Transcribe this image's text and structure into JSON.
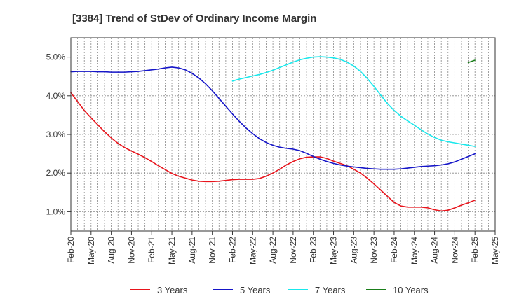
{
  "chart_data": {
    "type": "line",
    "title": "[3384]  Trend of StDev of Ordinary Income Margin",
    "xlabel": "",
    "ylabel": "",
    "x_ticks": [
      "Feb-20",
      "May-20",
      "Aug-20",
      "Nov-20",
      "Feb-21",
      "May-21",
      "Aug-21",
      "Nov-21",
      "Feb-22",
      "May-22",
      "Aug-22",
      "Nov-22",
      "Feb-23",
      "May-23",
      "Aug-23",
      "Nov-23",
      "Feb-24",
      "May-24",
      "Aug-24",
      "Nov-24",
      "Feb-25",
      "May-25"
    ],
    "y_ticks": [
      "1.0%",
      "2.0%",
      "3.0%",
      "4.0%",
      "5.0%"
    ],
    "ylim": [
      0.5,
      5.5
    ],
    "grid": true,
    "legend_position": "bottom",
    "series": [
      {
        "name": "3 Years",
        "color": "#e8141c",
        "points": [
          [
            "Feb-20",
            4.08
          ],
          [
            "Mar-20",
            3.85
          ],
          [
            "Apr-20",
            3.62
          ],
          [
            "May-20",
            3.43
          ],
          [
            "Jun-20",
            3.25
          ],
          [
            "Jul-20",
            3.07
          ],
          [
            "Aug-20",
            2.91
          ],
          [
            "Sep-20",
            2.77
          ],
          [
            "Oct-20",
            2.66
          ],
          [
            "Nov-20",
            2.57
          ],
          [
            "Dec-20",
            2.49
          ],
          [
            "Jan-21",
            2.4
          ],
          [
            "Feb-21",
            2.3
          ],
          [
            "Mar-21",
            2.19
          ],
          [
            "Apr-21",
            2.09
          ],
          [
            "May-21",
            1.99
          ],
          [
            "Jun-21",
            1.92
          ],
          [
            "Jul-21",
            1.87
          ],
          [
            "Aug-21",
            1.82
          ],
          [
            "Sep-21",
            1.79
          ],
          [
            "Oct-21",
            1.78
          ],
          [
            "Nov-21",
            1.78
          ],
          [
            "Dec-21",
            1.79
          ],
          [
            "Jan-22",
            1.81
          ],
          [
            "Feb-22",
            1.83
          ],
          [
            "Mar-22",
            1.84
          ],
          [
            "Apr-22",
            1.84
          ],
          [
            "May-22",
            1.84
          ],
          [
            "Jun-22",
            1.86
          ],
          [
            "Jul-22",
            1.92
          ],
          [
            "Aug-22",
            2.0
          ],
          [
            "Sep-22",
            2.1
          ],
          [
            "Oct-22",
            2.21
          ],
          [
            "Nov-22",
            2.3
          ],
          [
            "Dec-22",
            2.37
          ],
          [
            "Jan-23",
            2.41
          ],
          [
            "Feb-23",
            2.42
          ],
          [
            "Mar-23",
            2.42
          ],
          [
            "Apr-23",
            2.38
          ],
          [
            "May-23",
            2.31
          ],
          [
            "Jun-23",
            2.25
          ],
          [
            "Jul-23",
            2.19
          ],
          [
            "Aug-23",
            2.1
          ],
          [
            "Sep-23",
            2.0
          ],
          [
            "Oct-23",
            1.87
          ],
          [
            "Nov-23",
            1.72
          ],
          [
            "Dec-23",
            1.56
          ],
          [
            "Jan-24",
            1.4
          ],
          [
            "Feb-24",
            1.24
          ],
          [
            "Mar-24",
            1.15
          ],
          [
            "Apr-24",
            1.12
          ],
          [
            "May-24",
            1.12
          ],
          [
            "Jun-24",
            1.12
          ],
          [
            "Jul-24",
            1.1
          ],
          [
            "Aug-24",
            1.05
          ],
          [
            "Sep-24",
            1.02
          ],
          [
            "Oct-24",
            1.04
          ],
          [
            "Nov-24",
            1.1
          ],
          [
            "Dec-24",
            1.17
          ],
          [
            "Jan-25",
            1.23
          ],
          [
            "Feb-25",
            1.3
          ]
        ]
      },
      {
        "name": "5 Years",
        "color": "#1515c8",
        "points": [
          [
            "Feb-20",
            4.62
          ],
          [
            "Mar-20",
            4.63
          ],
          [
            "Apr-20",
            4.63
          ],
          [
            "May-20",
            4.63
          ],
          [
            "Jun-20",
            4.62
          ],
          [
            "Jul-20",
            4.62
          ],
          [
            "Aug-20",
            4.61
          ],
          [
            "Sep-20",
            4.61
          ],
          [
            "Oct-20",
            4.61
          ],
          [
            "Nov-20",
            4.62
          ],
          [
            "Dec-20",
            4.63
          ],
          [
            "Jan-21",
            4.65
          ],
          [
            "Feb-21",
            4.67
          ],
          [
            "Mar-21",
            4.69
          ],
          [
            "Apr-21",
            4.72
          ],
          [
            "May-21",
            4.74
          ],
          [
            "Jun-21",
            4.72
          ],
          [
            "Jul-21",
            4.67
          ],
          [
            "Aug-21",
            4.58
          ],
          [
            "Sep-21",
            4.46
          ],
          [
            "Oct-21",
            4.31
          ],
          [
            "Nov-21",
            4.13
          ],
          [
            "Dec-21",
            3.93
          ],
          [
            "Jan-22",
            3.73
          ],
          [
            "Feb-22",
            3.53
          ],
          [
            "Mar-22",
            3.34
          ],
          [
            "Apr-22",
            3.17
          ],
          [
            "May-22",
            3.02
          ],
          [
            "Jun-22",
            2.89
          ],
          [
            "Jul-22",
            2.79
          ],
          [
            "Aug-22",
            2.72
          ],
          [
            "Sep-22",
            2.67
          ],
          [
            "Oct-22",
            2.64
          ],
          [
            "Nov-22",
            2.62
          ],
          [
            "Dec-22",
            2.58
          ],
          [
            "Jan-23",
            2.51
          ],
          [
            "Feb-23",
            2.43
          ],
          [
            "Mar-23",
            2.36
          ],
          [
            "Apr-23",
            2.3
          ],
          [
            "May-23",
            2.25
          ],
          [
            "Jun-23",
            2.21
          ],
          [
            "Jul-23",
            2.18
          ],
          [
            "Aug-23",
            2.16
          ],
          [
            "Sep-23",
            2.14
          ],
          [
            "Oct-23",
            2.12
          ],
          [
            "Nov-23",
            2.11
          ],
          [
            "Dec-23",
            2.1
          ],
          [
            "Jan-24",
            2.1
          ],
          [
            "Feb-24",
            2.1
          ],
          [
            "Mar-24",
            2.11
          ],
          [
            "Apr-24",
            2.13
          ],
          [
            "May-24",
            2.15
          ],
          [
            "Jun-24",
            2.17
          ],
          [
            "Jul-24",
            2.18
          ],
          [
            "Aug-24",
            2.19
          ],
          [
            "Sep-24",
            2.21
          ],
          [
            "Oct-24",
            2.24
          ],
          [
            "Nov-24",
            2.29
          ],
          [
            "Dec-24",
            2.36
          ],
          [
            "Jan-25",
            2.43
          ],
          [
            "Feb-25",
            2.5
          ]
        ]
      },
      {
        "name": "7 Years",
        "color": "#19e8ec",
        "points": [
          [
            "Feb-22",
            4.38
          ],
          [
            "Mar-22",
            4.43
          ],
          [
            "Apr-22",
            4.47
          ],
          [
            "May-22",
            4.51
          ],
          [
            "Jun-22",
            4.55
          ],
          [
            "Jul-22",
            4.6
          ],
          [
            "Aug-22",
            4.66
          ],
          [
            "Sep-22",
            4.73
          ],
          [
            "Oct-22",
            4.8
          ],
          [
            "Nov-22",
            4.87
          ],
          [
            "Dec-22",
            4.93
          ],
          [
            "Jan-23",
            4.97
          ],
          [
            "Feb-23",
            5.0
          ],
          [
            "Mar-23",
            5.01
          ],
          [
            "Apr-23",
            5.0
          ],
          [
            "May-23",
            4.98
          ],
          [
            "Jun-23",
            4.94
          ],
          [
            "Jul-23",
            4.87
          ],
          [
            "Aug-23",
            4.77
          ],
          [
            "Sep-23",
            4.63
          ],
          [
            "Oct-23",
            4.45
          ],
          [
            "Nov-23",
            4.24
          ],
          [
            "Dec-23",
            4.02
          ],
          [
            "Jan-24",
            3.8
          ],
          [
            "Feb-24",
            3.62
          ],
          [
            "Mar-24",
            3.47
          ],
          [
            "Apr-24",
            3.35
          ],
          [
            "May-24",
            3.24
          ],
          [
            "Jun-24",
            3.12
          ],
          [
            "Jul-24",
            3.01
          ],
          [
            "Aug-24",
            2.92
          ],
          [
            "Sep-24",
            2.85
          ],
          [
            "Oct-24",
            2.81
          ],
          [
            "Nov-24",
            2.78
          ],
          [
            "Dec-24",
            2.75
          ],
          [
            "Jan-25",
            2.72
          ],
          [
            "Feb-25",
            2.69
          ]
        ]
      },
      {
        "name": "10 Years",
        "color": "#1a7e1a",
        "points": [
          [
            "Jan-25",
            4.86
          ],
          [
            "Feb-25",
            4.92
          ]
        ]
      }
    ]
  }
}
